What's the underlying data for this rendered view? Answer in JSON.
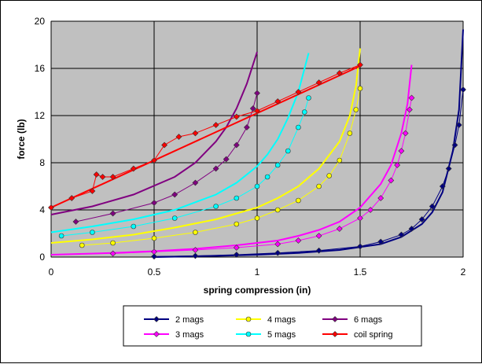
{
  "chart_data": {
    "type": "scatter",
    "xlabel": "spring compression (in)",
    "ylabel": "force (lb)",
    "xlim": [
      0,
      2
    ],
    "ylim": [
      0,
      20
    ],
    "xticks": [
      "0",
      "0.5",
      "1",
      "1.5",
      "2"
    ],
    "yticks": [
      "0",
      "4",
      "8",
      "12",
      "16",
      "20"
    ],
    "xtick_values": [
      0,
      0.5,
      1,
      1.5,
      2
    ],
    "ytick_values": [
      0,
      4,
      8,
      12,
      16,
      20
    ],
    "grid": true,
    "legend_position": "bottom",
    "series": [
      {
        "name": "2 mags",
        "color": "#000080",
        "marker": "diamond",
        "points": [
          [
            0.5,
            0.05
          ],
          [
            0.7,
            0.1
          ],
          [
            0.9,
            0.2
          ],
          [
            1.1,
            0.35
          ],
          [
            1.3,
            0.55
          ],
          [
            1.5,
            0.9
          ],
          [
            1.6,
            1.3
          ],
          [
            1.7,
            1.9
          ],
          [
            1.75,
            2.4
          ],
          [
            1.8,
            3.2
          ],
          [
            1.85,
            4.3
          ],
          [
            1.9,
            6.0
          ],
          [
            1.93,
            7.5
          ],
          [
            1.96,
            9.5
          ],
          [
            1.98,
            11.2
          ],
          [
            2.0,
            14.2
          ]
        ],
        "fit": [
          [
            0.5,
            0
          ],
          [
            0.8,
            0.1
          ],
          [
            1.0,
            0.2
          ],
          [
            1.2,
            0.35
          ],
          [
            1.4,
            0.6
          ],
          [
            1.6,
            1.1
          ],
          [
            1.7,
            1.7
          ],
          [
            1.8,
            2.8
          ],
          [
            1.85,
            3.8
          ],
          [
            1.9,
            5.5
          ],
          [
            1.95,
            9.0
          ],
          [
            1.98,
            12.5
          ],
          [
            2.0,
            19.3
          ]
        ]
      },
      {
        "name": "3 mags",
        "color": "#FF00FF",
        "marker": "diamond",
        "points": [
          [
            0.3,
            0.3
          ],
          [
            0.5,
            0.45
          ],
          [
            0.7,
            0.6
          ],
          [
            0.9,
            0.8
          ],
          [
            1.1,
            1.1
          ],
          [
            1.2,
            1.4
          ],
          [
            1.3,
            1.8
          ],
          [
            1.4,
            2.4
          ],
          [
            1.5,
            3.3
          ],
          [
            1.55,
            4.0
          ],
          [
            1.6,
            5.0
          ],
          [
            1.65,
            6.5
          ],
          [
            1.68,
            7.8
          ],
          [
            1.7,
            9.0
          ],
          [
            1.72,
            10.5
          ],
          [
            1.74,
            12.5
          ],
          [
            1.75,
            13.5
          ]
        ],
        "fit": [
          [
            0,
            0.2
          ],
          [
            0.3,
            0.35
          ],
          [
            0.5,
            0.5
          ],
          [
            0.7,
            0.7
          ],
          [
            0.9,
            1.0
          ],
          [
            1.1,
            1.4
          ],
          [
            1.2,
            1.8
          ],
          [
            1.3,
            2.3
          ],
          [
            1.4,
            3.0
          ],
          [
            1.5,
            4.2
          ],
          [
            1.6,
            6.2
          ],
          [
            1.65,
            7.8
          ],
          [
            1.7,
            10.5
          ],
          [
            1.73,
            13.0
          ],
          [
            1.75,
            16.3
          ]
        ]
      },
      {
        "name": "4 mags",
        "color": "#FFFF00",
        "marker": "circle",
        "points": [
          [
            0.15,
            1.0
          ],
          [
            0.3,
            1.2
          ],
          [
            0.5,
            1.6
          ],
          [
            0.7,
            2.1
          ],
          [
            0.9,
            2.8
          ],
          [
            1.0,
            3.3
          ],
          [
            1.1,
            4.0
          ],
          [
            1.2,
            4.8
          ],
          [
            1.3,
            6.0
          ],
          [
            1.35,
            6.9
          ],
          [
            1.4,
            8.2
          ],
          [
            1.45,
            10.5
          ],
          [
            1.48,
            12.5
          ],
          [
            1.5,
            14.3
          ]
        ],
        "fit": [
          [
            0,
            1.2
          ],
          [
            0.2,
            1.5
          ],
          [
            0.4,
            1.9
          ],
          [
            0.6,
            2.5
          ],
          [
            0.8,
            3.2
          ],
          [
            1.0,
            4.2
          ],
          [
            1.1,
            5.0
          ],
          [
            1.2,
            6.0
          ],
          [
            1.3,
            7.5
          ],
          [
            1.4,
            9.8
          ],
          [
            1.45,
            12.0
          ],
          [
            1.48,
            14.5
          ],
          [
            1.5,
            17.7
          ]
        ]
      },
      {
        "name": "5 mags",
        "color": "#00FFFF",
        "marker": "circle",
        "points": [
          [
            0.05,
            1.8
          ],
          [
            0.2,
            2.1
          ],
          [
            0.4,
            2.6
          ],
          [
            0.6,
            3.3
          ],
          [
            0.8,
            4.3
          ],
          [
            0.9,
            5.0
          ],
          [
            1.0,
            6.0
          ],
          [
            1.05,
            6.8
          ],
          [
            1.1,
            7.8
          ],
          [
            1.15,
            9.0
          ],
          [
            1.2,
            11.0
          ],
          [
            1.23,
            12.3
          ],
          [
            1.25,
            13.5
          ]
        ],
        "fit": [
          [
            0,
            2.1
          ],
          [
            0.2,
            2.6
          ],
          [
            0.4,
            3.2
          ],
          [
            0.6,
            4.0
          ],
          [
            0.8,
            5.3
          ],
          [
            0.9,
            6.3
          ],
          [
            1.0,
            7.7
          ],
          [
            1.05,
            8.7
          ],
          [
            1.1,
            10.0
          ],
          [
            1.15,
            11.8
          ],
          [
            1.2,
            14.0
          ],
          [
            1.25,
            17.3
          ]
        ]
      },
      {
        "name": "6 mags",
        "color": "#800080",
        "marker": "diamond",
        "points": [
          [
            0.12,
            3.0
          ],
          [
            0.3,
            3.7
          ],
          [
            0.5,
            4.6
          ],
          [
            0.6,
            5.3
          ],
          [
            0.7,
            6.3
          ],
          [
            0.8,
            7.5
          ],
          [
            0.85,
            8.3
          ],
          [
            0.9,
            9.5
          ],
          [
            0.95,
            11.0
          ],
          [
            0.98,
            12.6
          ],
          [
            1.0,
            13.9
          ]
        ],
        "fit": [
          [
            0,
            3.6
          ],
          [
            0.2,
            4.3
          ],
          [
            0.4,
            5.3
          ],
          [
            0.6,
            6.8
          ],
          [
            0.7,
            8.0
          ],
          [
            0.8,
            9.8
          ],
          [
            0.85,
            11.0
          ],
          [
            0.9,
            12.6
          ],
          [
            0.95,
            14.7
          ],
          [
            1.0,
            17.4
          ]
        ]
      },
      {
        "name": "coil spring",
        "color": "#FF0000",
        "marker": "diamond",
        "points": [
          [
            0.0,
            4.2
          ],
          [
            0.1,
            5.0
          ],
          [
            0.2,
            5.6
          ],
          [
            0.22,
            7.0
          ],
          [
            0.25,
            6.8
          ],
          [
            0.3,
            6.8
          ],
          [
            0.4,
            7.5
          ],
          [
            0.5,
            8.2
          ],
          [
            0.55,
            9.5
          ],
          [
            0.62,
            10.2
          ],
          [
            0.7,
            10.5
          ],
          [
            0.8,
            11.2
          ],
          [
            0.9,
            11.9
          ],
          [
            1.0,
            12.4
          ],
          [
            1.1,
            13.2
          ],
          [
            1.2,
            14.0
          ],
          [
            1.3,
            14.8
          ],
          [
            1.4,
            15.6
          ],
          [
            1.5,
            16.3
          ]
        ],
        "fit": [
          [
            0.0,
            4.2
          ],
          [
            1.5,
            16.2
          ]
        ]
      }
    ]
  }
}
